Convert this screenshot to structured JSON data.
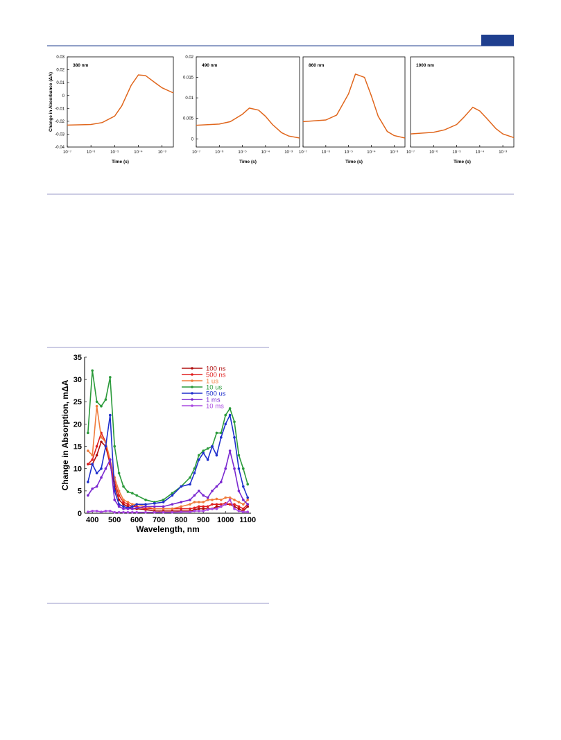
{
  "chart_data": [
    {
      "type": "line",
      "annotation": "380 nm",
      "ylabel": "Change in Absorbance (ΔA)",
      "xlabel": "Time (s)",
      "xscale": "log",
      "xlim": [
        1e-07,
        0.003
      ],
      "xticks": [
        {
          "value": 1e-07,
          "label": "10⁻⁷"
        },
        {
          "value": 1e-06,
          "label": "10⁻⁶"
        },
        {
          "value": 1e-05,
          "label": "10⁻⁵"
        },
        {
          "value": 0.0001,
          "label": "10⁻⁴"
        },
        {
          "value": 0.001,
          "label": "10⁻³"
        }
      ],
      "ylim": [
        -0.04,
        0.03
      ],
      "yticks": [
        -0.04,
        -0.03,
        -0.02,
        -0.01,
        0,
        0.01,
        0.02,
        0.03
      ],
      "x": [
        1e-07,
        1e-06,
        3e-06,
        1e-05,
        2e-05,
        5e-05,
        0.0001,
        0.0002,
        0.0005,
        0.001,
        0.003
      ],
      "series": [
        {
          "color": "#e0661c",
          "values": [
            -0.023,
            -0.0225,
            -0.021,
            -0.016,
            -0.008,
            0.008,
            0.016,
            0.0155,
            0.01,
            0.006,
            0.002
          ]
        }
      ]
    },
    {
      "type": "line",
      "annotation": "490 nm",
      "xlabel": "Time (s)",
      "xscale": "log",
      "xlim": [
        1e-07,
        0.003
      ],
      "xticks": [
        {
          "value": 1e-07,
          "label": "10⁻⁷"
        },
        {
          "value": 1e-06,
          "label": "10⁻⁶"
        },
        {
          "value": 1e-05,
          "label": "10⁻⁵"
        },
        {
          "value": 0.0001,
          "label": "10⁻⁴"
        },
        {
          "value": 0.001,
          "label": "10⁻³"
        }
      ],
      "ylim": [
        -0.002,
        0.02
      ],
      "yticks": [
        0,
        0.005,
        0.01,
        0.015,
        0.02
      ],
      "x": [
        1e-07,
        1e-06,
        3e-06,
        1e-05,
        2e-05,
        5e-05,
        0.0001,
        0.0002,
        0.0005,
        0.001,
        0.003
      ],
      "series": [
        {
          "color": "#e0661c",
          "values": [
            0.0033,
            0.0036,
            0.0042,
            0.006,
            0.0075,
            0.007,
            0.0055,
            0.0035,
            0.0015,
            0.0007,
            0.0002
          ]
        }
      ]
    },
    {
      "type": "line",
      "annotation": "860 nm",
      "xlabel": "Time (s)",
      "xscale": "log",
      "xlim": [
        1e-07,
        0.003
      ],
      "xticks": [
        {
          "value": 1e-07,
          "label": "10⁻⁷"
        },
        {
          "value": 1e-06,
          "label": "10⁻⁶"
        },
        {
          "value": 1e-05,
          "label": "10⁻⁵"
        },
        {
          "value": 0.0001,
          "label": "10⁻⁴"
        },
        {
          "value": 0.001,
          "label": "10⁻³"
        }
      ],
      "ylim": [
        -0.002,
        0.02
      ],
      "x": [
        1e-07,
        1e-06,
        3e-06,
        1e-05,
        2e-05,
        5e-05,
        0.0001,
        0.0002,
        0.0005,
        0.001,
        0.003
      ],
      "series": [
        {
          "color": "#e0661c",
          "values": [
            0.0042,
            0.0046,
            0.0058,
            0.011,
            0.0158,
            0.015,
            0.0105,
            0.0055,
            0.0018,
            0.0008,
            0.0002
          ]
        }
      ]
    },
    {
      "type": "line",
      "annotation": "1000 nm",
      "xlabel": "Time (s)",
      "xscale": "log",
      "xlim": [
        1e-07,
        0.003
      ],
      "xticks": [
        {
          "value": 1e-07,
          "label": "10⁻⁷"
        },
        {
          "value": 1e-06,
          "label": "10⁻⁶"
        },
        {
          "value": 1e-05,
          "label": "10⁻⁵"
        },
        {
          "value": 0.0001,
          "label": "10⁻⁴"
        },
        {
          "value": 0.001,
          "label": "10⁻³"
        }
      ],
      "ylim": [
        -0.002,
        0.02
      ],
      "x": [
        1e-07,
        1e-06,
        3e-06,
        1e-05,
        2e-05,
        5e-05,
        0.0001,
        0.0002,
        0.0005,
        0.001,
        0.003
      ],
      "series": [
        {
          "color": "#e0661c",
          "values": [
            0.0012,
            0.0016,
            0.0022,
            0.0035,
            0.0052,
            0.0077,
            0.0068,
            0.005,
            0.0025,
            0.0012,
            0.0003
          ]
        }
      ]
    },
    {
      "type": "line",
      "markers": true,
      "ylabel": "Change in Absorption, mΔA",
      "xlabel": "Wavelength, nm",
      "xlim": [
        365,
        1115
      ],
      "xticks": [
        400,
        500,
        600,
        700,
        800,
        900,
        1000,
        1100
      ],
      "ylim": [
        0,
        35
      ],
      "yticks": [
        0,
        5,
        10,
        15,
        20,
        25,
        30,
        35
      ],
      "x": [
        380,
        400,
        420,
        440,
        460,
        480,
        500,
        520,
        540,
        560,
        580,
        600,
        640,
        680,
        720,
        760,
        800,
        840,
        860,
        880,
        900,
        920,
        940,
        960,
        980,
        1000,
        1020,
        1040,
        1060,
        1080,
        1100
      ],
      "series": [
        {
          "name": "100 ns",
          "color": "#b01010",
          "values": [
            11,
            11,
            13,
            16,
            15,
            11,
            6,
            3,
            2,
            1.5,
            1,
            1,
            0.8,
            0.5,
            0.5,
            0.5,
            0.5,
            0.5,
            0.8,
            1,
            1,
            1,
            1,
            1.5,
            1.5,
            2,
            2,
            1.5,
            1,
            0.5,
            1.5
          ]
        },
        {
          "name": "500 ns",
          "color": "#e02020",
          "values": [
            11,
            12,
            15,
            18,
            16,
            11,
            7,
            4,
            2.5,
            2,
            1.5,
            1.5,
            1,
            1,
            1,
            1,
            1,
            1,
            1.2,
            1.5,
            1.5,
            1.5,
            2,
            2,
            2,
            2.2,
            2,
            2,
            1.5,
            1,
            2
          ]
        },
        {
          "name": "1 us",
          "color": "#f07c3c",
          "values": [
            14,
            13,
            24,
            17,
            16,
            12,
            8,
            5,
            3,
            2.5,
            2,
            2,
            1.5,
            1,
            1,
            1,
            1.5,
            2,
            2.5,
            2.5,
            2.5,
            3,
            3,
            3.2,
            3,
            3.5,
            3.5,
            3,
            2.5,
            2,
            3
          ]
        },
        {
          "name": "10 us",
          "color": "#2a9a3a",
          "values": [
            18,
            32,
            25,
            24,
            25.5,
            30.5,
            15,
            9,
            6,
            4.8,
            4.5,
            4,
            3,
            2.5,
            3,
            4.5,
            6,
            8,
            10,
            13,
            14,
            14.5,
            15,
            18,
            18,
            22,
            23.5,
            20.5,
            13,
            10,
            6.5
          ]
        },
        {
          "name": "500 us",
          "color": "#1f2fcc",
          "values": [
            7,
            11,
            9,
            10,
            15,
            22,
            5,
            2,
            1.5,
            1.2,
            1.5,
            2,
            2,
            2.2,
            2.5,
            4,
            6,
            6.5,
            9,
            12,
            13.5,
            12,
            15,
            13,
            17,
            20,
            22,
            17,
            10,
            6,
            3.5
          ]
        },
        {
          "name": "1 ms",
          "color": "#7a28d0",
          "values": [
            4,
            5.5,
            6,
            8,
            10,
            12,
            3,
            1.5,
            1,
            1,
            1,
            1.2,
            1.5,
            1.5,
            1.5,
            2,
            2.5,
            3,
            4,
            5,
            4,
            3.5,
            5,
            6,
            7,
            10,
            14,
            10,
            5,
            3,
            2
          ]
        },
        {
          "name": "10 ms",
          "color": "#a848e0",
          "values": [
            0.3,
            0.5,
            0.5,
            0.3,
            0.5,
            0.5,
            0.2,
            0.2,
            0.2,
            0.2,
            0.2,
            0.2,
            0.2,
            0.2,
            0.2,
            0.2,
            0.3,
            0.3,
            0.5,
            0.5,
            0.5,
            0.8,
            1,
            1,
            1.5,
            2,
            3,
            1,
            0.5,
            0.3,
            0.3
          ]
        }
      ]
    }
  ]
}
